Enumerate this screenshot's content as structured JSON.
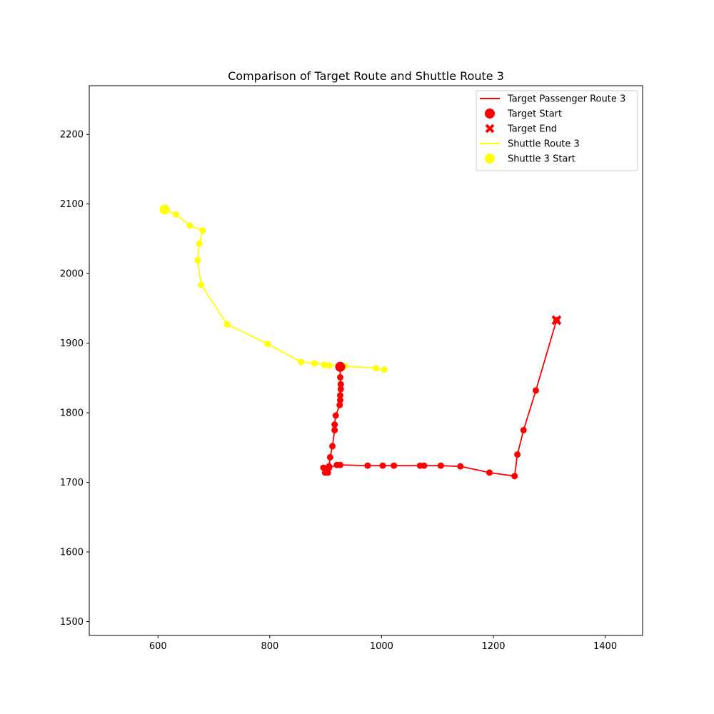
{
  "chart_data": {
    "type": "scatter",
    "title": "Comparison of Target Route and Shuttle Route 3",
    "xlabel": "",
    "ylabel": "",
    "xlim": [
      477,
      1467
    ],
    "ylim": [
      1480,
      2270
    ],
    "xticks": [
      600,
      800,
      1000,
      1200,
      1400
    ],
    "yticks": [
      1500,
      1600,
      1700,
      1800,
      1900,
      2000,
      2100,
      2200
    ],
    "grid": false,
    "legend_position": "top-right",
    "series": [
      {
        "name": "Target Passenger Route 3",
        "color": "#ff0000",
        "x": [
          926,
          926,
          927,
          927,
          926,
          926,
          925,
          918,
          916,
          916,
          912,
          908,
          906,
          904,
          899,
          896,
          906,
          920,
          926,
          975,
          1002,
          1022,
          1069,
          1076,
          1106,
          1141,
          1193,
          1238,
          1243,
          1254,
          1276,
          1313
        ],
        "y": [
          1866,
          1851,
          1841,
          1834,
          1825,
          1818,
          1811,
          1796,
          1783,
          1775,
          1752,
          1736,
          1723,
          1714,
          1714,
          1721,
          1721,
          1725,
          1725,
          1724,
          1724,
          1724,
          1724,
          1724,
          1724,
          1723,
          1714,
          1709,
          1740,
          1775,
          1832,
          1933
        ]
      },
      {
        "name": "Shuttle Route 3",
        "color": "#ffff00",
        "x": [
          612,
          632,
          657,
          680,
          674,
          671,
          677,
          724,
          796,
          856,
          880,
          897,
          906,
          926,
          934,
          990,
          1005
        ],
        "y": [
          2092,
          2085,
          2069,
          2062,
          2043,
          2019,
          1984,
          1927,
          1899,
          1873,
          1871,
          1869,
          1868,
          1868,
          1867,
          1864,
          1862
        ]
      }
    ],
    "markers": [
      {
        "name": "Target Start",
        "x": 926,
        "y": 1866,
        "color": "#ff0000",
        "shape": "circle"
      },
      {
        "name": "Target End",
        "x": 1313,
        "y": 1933,
        "color": "#ff0000",
        "shape": "x"
      },
      {
        "name": "Shuttle 3 Start",
        "x": 612,
        "y": 2092,
        "color": "#ffff00",
        "shape": "circle"
      }
    ],
    "legend": [
      {
        "label": "Target Passenger Route 3",
        "kind": "line",
        "color": "#ff0000"
      },
      {
        "label": "Target Start",
        "kind": "circle",
        "color": "#ff0000"
      },
      {
        "label": "Target End",
        "kind": "x",
        "color": "#ff0000"
      },
      {
        "label": "Shuttle Route 3",
        "kind": "line",
        "color": "#ffff00"
      },
      {
        "label": "Shuttle 3 Start",
        "kind": "circle",
        "color": "#ffff00"
      }
    ]
  }
}
